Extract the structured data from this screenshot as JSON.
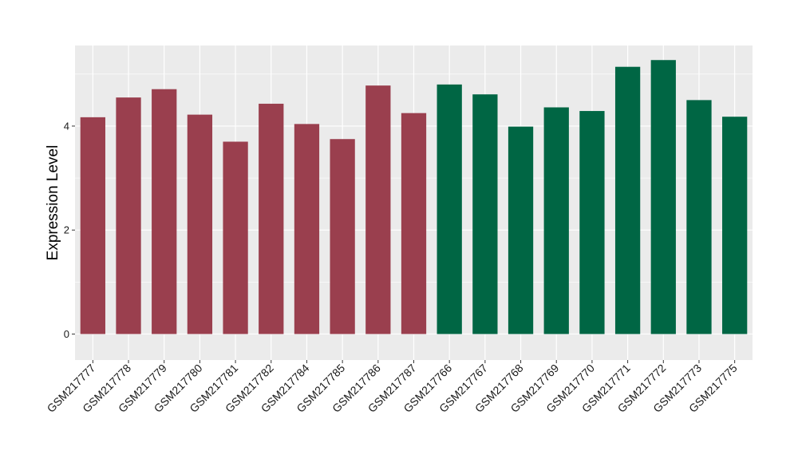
{
  "chart_data": {
    "type": "bar",
    "title": "",
    "xlabel": "",
    "ylabel": "Expression Level",
    "ylim": [
      -0.5,
      5.55
    ],
    "yticks": [
      0,
      2,
      4
    ],
    "grid": true,
    "panel_background": "#ebebeb",
    "grid_color": "#ffffff",
    "categories": [
      "GSM217777",
      "GSM217778",
      "GSM217779",
      "GSM217780",
      "GSM217781",
      "GSM217782",
      "GSM217784",
      "GSM217785",
      "GSM217786",
      "GSM217787",
      "GSM217766",
      "GSM217767",
      "GSM217768",
      "GSM217769",
      "GSM217770",
      "GSM217771",
      "GSM217772",
      "GSM217773",
      "GSM217775"
    ],
    "values": [
      4.17,
      4.55,
      4.71,
      4.22,
      3.7,
      4.43,
      4.04,
      3.75,
      4.78,
      4.25,
      4.8,
      4.61,
      3.99,
      4.36,
      4.29,
      5.14,
      5.27,
      4.5,
      4.18
    ],
    "group_colors": [
      "#9a3f4e",
      "#9a3f4e",
      "#9a3f4e",
      "#9a3f4e",
      "#9a3f4e",
      "#9a3f4e",
      "#9a3f4e",
      "#9a3f4e",
      "#9a3f4e",
      "#9a3f4e",
      "#006644",
      "#006644",
      "#006644",
      "#006644",
      "#006644",
      "#006644",
      "#006644",
      "#006644",
      "#006644"
    ]
  }
}
